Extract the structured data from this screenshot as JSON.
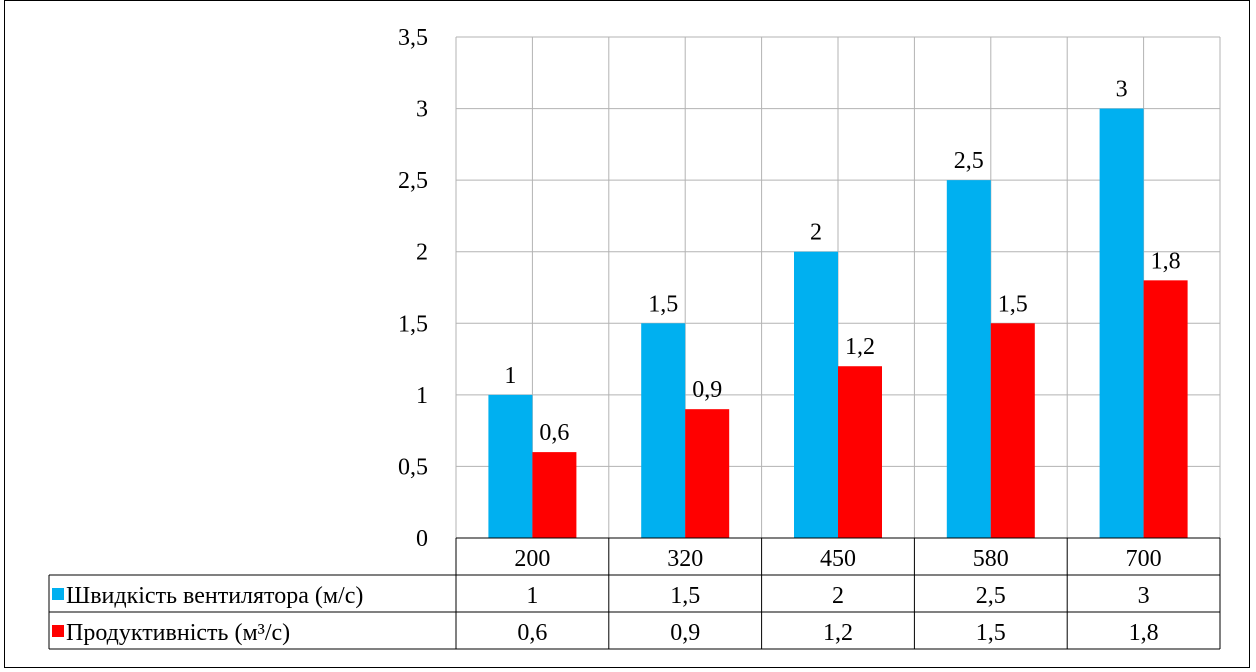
{
  "chart_data": {
    "type": "bar",
    "categories": [
      "200",
      "320",
      "450",
      "580",
      "700"
    ],
    "series": [
      {
        "name": "Швидкість вентилятора (м/с)",
        "values": [
          1,
          1.5,
          2,
          2.5,
          3
        ],
        "labels": [
          "1",
          "1,5",
          "2",
          "2,5",
          "3"
        ],
        "color": "#00B0F0"
      },
      {
        "name": "Продуктивність (м³/с)",
        "values": [
          0.6,
          0.9,
          1.2,
          1.5,
          1.8
        ],
        "labels": [
          "0,6",
          "0,9",
          "1,2",
          "1,5",
          "1,8"
        ],
        "color": "#FF0000"
      }
    ],
    "ylim": [
      0,
      3.5
    ],
    "yticks": [
      0,
      0.5,
      1,
      1.5,
      2,
      2.5,
      3,
      3.5
    ],
    "ytick_labels": [
      "0",
      "0,5",
      "1",
      "1,5",
      "2",
      "2,5",
      "3",
      "3,5"
    ],
    "grid": true,
    "legend": "data-table",
    "title": "",
    "xlabel": "",
    "ylabel": ""
  }
}
